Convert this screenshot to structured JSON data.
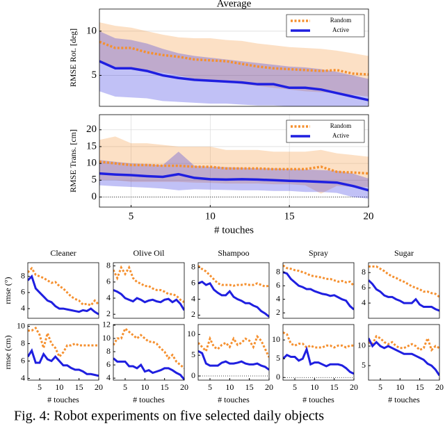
{
  "chart_data": [
    {
      "type": "line",
      "title": "Average",
      "ylabel": "RMSE Rot. [deg]",
      "x": [
        3,
        4,
        5,
        6,
        7,
        8,
        9,
        10,
        11,
        12,
        13,
        14,
        15,
        16,
        17,
        18,
        19,
        20
      ],
      "xlim": [
        3,
        20
      ],
      "ylim": [
        1.5,
        12.5
      ],
      "yticks": [
        5,
        10
      ],
      "grid": true,
      "legend": "top-right",
      "series": [
        {
          "name": "Random",
          "color": "#f5902f",
          "values": [
            8.8,
            8.1,
            8.1,
            7.6,
            7.3,
            7.1,
            6.8,
            6.7,
            6.6,
            6.3,
            6.0,
            5.8,
            5.7,
            5.6,
            5.5,
            5.6,
            5.2,
            5.1
          ],
          "lower": [
            6.5,
            6.0,
            5.8,
            5.5,
            5.3,
            5.0,
            4.6,
            4.5,
            4.3,
            4.0,
            3.8,
            3.6,
            3.4,
            3.2,
            3.1,
            3.0,
            2.8,
            2.6
          ],
          "upper": [
            11,
            10.6,
            10.4,
            10,
            9.6,
            9.3,
            9.2,
            9.2,
            9.0,
            8.9,
            8.6,
            8.4,
            8.2,
            8.1,
            8.0,
            7.8,
            7.5,
            7.2
          ]
        },
        {
          "name": "Active",
          "color": "#1f1fe0",
          "values": [
            6.6,
            5.8,
            5.8,
            5.5,
            5.0,
            4.7,
            4.5,
            4.4,
            4.3,
            4.2,
            4.0,
            4.0,
            3.6,
            3.6,
            3.4,
            3.0,
            2.6,
            2.2
          ],
          "lower": [
            3.2,
            2.6,
            2.5,
            2.4,
            2.1,
            2.0,
            1.9,
            1.8,
            1.8,
            1.7,
            1.6,
            1.6,
            1.5,
            1.5,
            1.5,
            1.5,
            1.5,
            1.5
          ],
          "upper": [
            10,
            9.2,
            9.0,
            8.6,
            8.0,
            7.5,
            7.2,
            7.0,
            6.8,
            6.6,
            6.4,
            6.2,
            6.0,
            5.9,
            5.7,
            5.4,
            5.0,
            4.6
          ]
        }
      ]
    },
    {
      "type": "line",
      "ylabel": "RMSE Trans. [cm]",
      "xlabel": "# touches",
      "x": [
        3,
        4,
        5,
        6,
        7,
        8,
        9,
        10,
        11,
        12,
        13,
        14,
        15,
        16,
        17,
        18,
        19,
        20
      ],
      "xlim": [
        3,
        20
      ],
      "xticks": [
        5,
        10,
        15,
        20
      ],
      "ylim": [
        -3,
        24.5
      ],
      "yticks": [
        0,
        5,
        10,
        15,
        20
      ],
      "grid": true,
      "legend": "top-right",
      "zero_line": true,
      "series": [
        {
          "name": "Random",
          "color": "#f5902f",
          "values": [
            10.5,
            10,
            9.5,
            9.5,
            9.3,
            9.3,
            9,
            9,
            8.5,
            8.5,
            8.5,
            8.3,
            8.3,
            8.3,
            9,
            7.5,
            7.3,
            7
          ],
          "lower": [
            5,
            5,
            4.5,
            4.5,
            4.5,
            4.5,
            4.3,
            4.2,
            4,
            4,
            4,
            3.8,
            3.8,
            3.5,
            1,
            3.3,
            3,
            3
          ],
          "upper": [
            17,
            18,
            16,
            16,
            15.5,
            15,
            15,
            15,
            14,
            14,
            14,
            13.5,
            13.5,
            13.5,
            14,
            13,
            12.5,
            12
          ]
        },
        {
          "name": "Active",
          "color": "#1f1fe0",
          "values": [
            7,
            6.7,
            6.5,
            6.2,
            6,
            6.8,
            5.7,
            5.3,
            5.2,
            5.3,
            5.2,
            5.0,
            4.8,
            4.7,
            4.5,
            4.3,
            3.3,
            2
          ],
          "lower": [
            3.5,
            3.2,
            3,
            2.8,
            2.5,
            2,
            2.3,
            2.2,
            2.1,
            2,
            2,
            1.8,
            1.8,
            1.5,
            1.5,
            1.2,
            0,
            -0.5
          ],
          "upper": [
            11,
            10.5,
            10,
            9.8,
            9.5,
            13.5,
            9.3,
            9,
            8.9,
            8.7,
            8.5,
            8.5,
            8.3,
            8.2,
            8,
            7.8,
            7,
            5.5
          ]
        }
      ]
    },
    {
      "type": "line",
      "title": "Cleaner",
      "ylabel": "rmse (°)",
      "x": [
        2,
        3,
        4,
        5,
        6,
        7,
        8,
        9,
        10,
        11,
        12,
        13,
        14,
        15,
        16,
        17,
        18,
        19,
        20
      ],
      "xlim": [
        2,
        20
      ],
      "ylim": [
        2.8,
        9.7
      ],
      "yticks": [
        4,
        6,
        8
      ],
      "series": [
        {
          "color": "#f5902f",
          "values": [
            8.5,
            9,
            8.2,
            8,
            7.8,
            7.5,
            7.2,
            7.3,
            6.8,
            6.5,
            6,
            5.5,
            5.2,
            5,
            4.5,
            4.6,
            4.4,
            5,
            4.5
          ]
        },
        {
          "color": "#1f1fe0",
          "values": [
            7.5,
            8,
            6.5,
            6,
            5.5,
            5,
            4.8,
            4.3,
            4,
            4,
            3.9,
            3.8,
            3.7,
            3.6,
            3.8,
            3.7,
            4,
            3.6,
            3.3
          ]
        }
      ]
    },
    {
      "type": "line",
      "title": "Olive Oil",
      "x": [
        2,
        3,
        4,
        5,
        6,
        7,
        8,
        9,
        10,
        11,
        12,
        13,
        14,
        15,
        16,
        17,
        18,
        19,
        20
      ],
      "xlim": [
        2,
        20
      ],
      "ylim": [
        1.5,
        8.4
      ],
      "yticks": [
        2,
        4,
        6,
        8
      ],
      "series": [
        {
          "color": "#f5902f",
          "values": [
            7.5,
            6.5,
            7.8,
            7,
            7.8,
            6.5,
            6,
            5.8,
            5.5,
            5.5,
            5.2,
            5,
            5,
            4.8,
            4.5,
            4.5,
            4.3,
            3.8,
            3.5
          ]
        },
        {
          "color": "#1f1fe0",
          "values": [
            5,
            4.8,
            4.5,
            4,
            3.8,
            3.6,
            4,
            3.8,
            3.5,
            3.7,
            3.8,
            3.6,
            3.5,
            3.8,
            3.9,
            3.5,
            3.8,
            3.3,
            2.5
          ]
        }
      ]
    },
    {
      "type": "line",
      "title": "Shampoo",
      "x": [
        2,
        3,
        4,
        5,
        6,
        7,
        8,
        9,
        10,
        11,
        12,
        13,
        14,
        15,
        16,
        17,
        18,
        19,
        20
      ],
      "xlim": [
        2,
        20
      ],
      "ylim": [
        1.6,
        8.6
      ],
      "yticks": [
        2,
        4,
        6,
        8
      ],
      "series": [
        {
          "color": "#f5902f",
          "values": [
            8.2,
            7.8,
            7.5,
            7,
            6.5,
            6,
            5.8,
            5.8,
            5.8,
            5.7,
            5.8,
            5.8,
            5.9,
            5.8,
            5.8,
            6,
            5.8,
            5.6,
            5.7
          ]
        },
        {
          "color": "#1f1fe0",
          "values": [
            6,
            6.2,
            5.8,
            6,
            5.2,
            4.8,
            4.5,
            4.5,
            5,
            4.3,
            4,
            3.8,
            3.5,
            3.5,
            3.2,
            3,
            2.5,
            2.2,
            1.8
          ]
        }
      ]
    },
    {
      "type": "line",
      "title": "Spray",
      "x": [
        2,
        3,
        4,
        5,
        6,
        7,
        8,
        9,
        10,
        11,
        12,
        13,
        14,
        15,
        16,
        17,
        18,
        19,
        20
      ],
      "xlim": [
        2,
        20
      ],
      "ylim": [
        1.2,
        9.4
      ],
      "yticks": [
        2,
        4,
        6,
        8
      ],
      "series": [
        {
          "color": "#f5902f",
          "values": [
            9,
            8.6,
            8.5,
            8.3,
            8.2,
            8,
            7.8,
            7.5,
            7.4,
            7.3,
            7.2,
            7,
            7,
            6.8,
            6.6,
            6.7,
            6.5,
            6.6,
            6
          ]
        },
        {
          "color": "#1f1fe0",
          "values": [
            8,
            7.8,
            7,
            6.5,
            6,
            5.8,
            5.5,
            5.5,
            5.2,
            5,
            4.8,
            4.7,
            4.5,
            4.6,
            4.3,
            4,
            3.8,
            3,
            2.5
          ]
        }
      ]
    },
    {
      "type": "line",
      "title": "Sugar",
      "x": [
        2,
        3,
        4,
        5,
        6,
        7,
        8,
        9,
        10,
        11,
        12,
        13,
        14,
        15,
        16,
        17,
        18,
        19,
        20
      ],
      "xlim": [
        2,
        20
      ],
      "ylim": [
        2,
        9.3
      ],
      "yticks": [
        4,
        6,
        8
      ],
      "series": [
        {
          "color": "#f5902f",
          "values": [
            8.8,
            8.8,
            8.8,
            8.5,
            8.2,
            7.8,
            7.5,
            7.3,
            7,
            6.8,
            6.5,
            6.2,
            6,
            5.8,
            5.5,
            5.5,
            5.3,
            5.2,
            4.8
          ]
        },
        {
          "color": "#1f1fe0",
          "values": [
            7,
            6.5,
            5.8,
            5.5,
            5,
            4.8,
            4.8,
            4.5,
            4.3,
            4,
            4,
            4,
            4.5,
            3.8,
            3.5,
            3.5,
            3.5,
            3.2,
            3
          ]
        }
      ]
    },
    {
      "type": "line",
      "ylabel": "rmse (cm)",
      "xlabel": "# touches",
      "x": [
        2,
        3,
        4,
        5,
        6,
        7,
        8,
        9,
        10,
        11,
        12,
        13,
        14,
        15,
        16,
        17,
        18,
        19,
        20
      ],
      "xlim": [
        2,
        20
      ],
      "xticks": [
        5,
        10,
        15,
        20
      ],
      "ylim": [
        3.8,
        10.2
      ],
      "yticks": [
        4,
        6,
        8,
        10
      ],
      "series": [
        {
          "color": "#f5902f",
          "values": [
            9.5,
            9.5,
            9.8,
            9,
            7.5,
            9.2,
            8,
            7.5,
            6.5,
            7,
            7.8,
            7.8,
            8,
            7.8,
            7.8,
            7.8,
            7.8,
            7.8,
            7.8
          ]
        },
        {
          "color": "#1f1fe0",
          "values": [
            6.5,
            7.2,
            5.8,
            5.8,
            6.8,
            6.2,
            6,
            6.5,
            6,
            5.5,
            5.5,
            5.2,
            5,
            5,
            4.8,
            4.5,
            4.5,
            4.4,
            4.3
          ]
        }
      ]
    },
    {
      "type": "line",
      "xlabel": "# touches",
      "x": [
        2,
        3,
        4,
        5,
        6,
        7,
        8,
        9,
        10,
        11,
        12,
        13,
        14,
        15,
        16,
        17,
        18,
        19,
        20
      ],
      "xlim": [
        2,
        20
      ],
      "xticks": [
        5,
        10,
        15,
        20
      ],
      "ylim": [
        3.7,
        12.1
      ],
      "yticks": [
        4,
        6,
        8,
        10,
        12
      ],
      "series": [
        {
          "color": "#f5902f",
          "values": [
            9,
            10,
            10,
            11.5,
            11,
            10.5,
            10,
            10.5,
            10,
            9.5,
            9.5,
            9.2,
            8.5,
            8,
            7,
            7.5,
            6.5,
            6,
            5.5
          ]
        },
        {
          "color": "#1f1fe0",
          "values": [
            7,
            6.5,
            6.5,
            6.5,
            5.8,
            5.8,
            5.5,
            6,
            5,
            5.2,
            4.8,
            5,
            5.2,
            5.5,
            5.5,
            5.2,
            4.8,
            4.5,
            3.8
          ]
        }
      ]
    },
    {
      "type": "line",
      "xlabel": "# touches",
      "x": [
        2,
        3,
        4,
        5,
        6,
        7,
        8,
        9,
        10,
        11,
        12,
        13,
        14,
        15,
        16,
        17,
        18,
        19,
        20
      ],
      "xlim": [
        2,
        20
      ],
      "xticks": [
        5,
        10,
        15,
        20
      ],
      "ylim": [
        -1,
        12.4
      ],
      "yticks": [
        0,
        5,
        10
      ],
      "zero_line": true,
      "series": [
        {
          "color": "#f5902f",
          "values": [
            8,
            7,
            6,
            9,
            7,
            6.5,
            7.5,
            8,
            7,
            9,
            7.5,
            8,
            9,
            8.5,
            7,
            9.5,
            8.5,
            6.5,
            4.5
          ]
        },
        {
          "color": "#1f1fe0",
          "values": [
            6,
            5.5,
            3,
            2.5,
            2.5,
            2.5,
            3.2,
            3.5,
            3,
            3,
            3.2,
            3.5,
            3,
            2.8,
            2.8,
            3,
            2.5,
            2.2,
            1.5
          ]
        }
      ]
    },
    {
      "type": "line",
      "xlabel": "# touches",
      "x": [
        2,
        3,
        4,
        5,
        6,
        7,
        8,
        9,
        10,
        11,
        12,
        13,
        14,
        15,
        16,
        17,
        18,
        19,
        20
      ],
      "xlim": [
        2,
        20
      ],
      "xticks": [
        5,
        10,
        15,
        20
      ],
      "ylim": [
        -0.7,
        14.1
      ],
      "yticks": [
        0,
        5,
        10
      ],
      "zero_line": true,
      "series": [
        {
          "color": "#f5902f",
          "values": [
            12,
            11.5,
            9,
            8.5,
            9,
            9,
            8,
            8.5,
            8,
            8,
            8,
            8.5,
            8.5,
            8,
            8.5,
            8.5,
            8,
            8.5,
            8.5
          ]
        },
        {
          "color": "#1f1fe0",
          "values": [
            5,
            6,
            5.5,
            5.5,
            4.5,
            5,
            7.5,
            3.5,
            4,
            4,
            3.5,
            3,
            3.5,
            3.5,
            3.5,
            3.2,
            2.5,
            1.5,
            1
          ]
        }
      ]
    },
    {
      "type": "line",
      "xlabel": "# touches",
      "x": [
        2,
        3,
        4,
        5,
        6,
        7,
        8,
        9,
        10,
        11,
        12,
        13,
        14,
        15,
        16,
        17,
        18,
        19,
        20
      ],
      "xlim": [
        2,
        20
      ],
      "xticks": [
        5,
        10,
        15,
        20
      ],
      "ylim": [
        1.3,
        15.5
      ],
      "yticks": [
        5,
        10
      ],
      "series": [
        {
          "color": "#f5902f",
          "values": [
            11,
            10.5,
            12.5,
            12,
            11,
            10.5,
            11,
            10,
            9.5,
            9.5,
            10,
            10.5,
            10,
            9,
            9.5,
            12,
            9,
            10,
            9.5
          ]
        },
        {
          "color": "#1f1fe0",
          "values": [
            12,
            10,
            11,
            10,
            9.5,
            10,
            9.5,
            9,
            8.5,
            8,
            8,
            8,
            7.5,
            7,
            6.5,
            5.5,
            5,
            4,
            2.5
          ]
        }
      ]
    }
  ],
  "caption": "Fig. 4: Robot experiments on five selected daily objects"
}
